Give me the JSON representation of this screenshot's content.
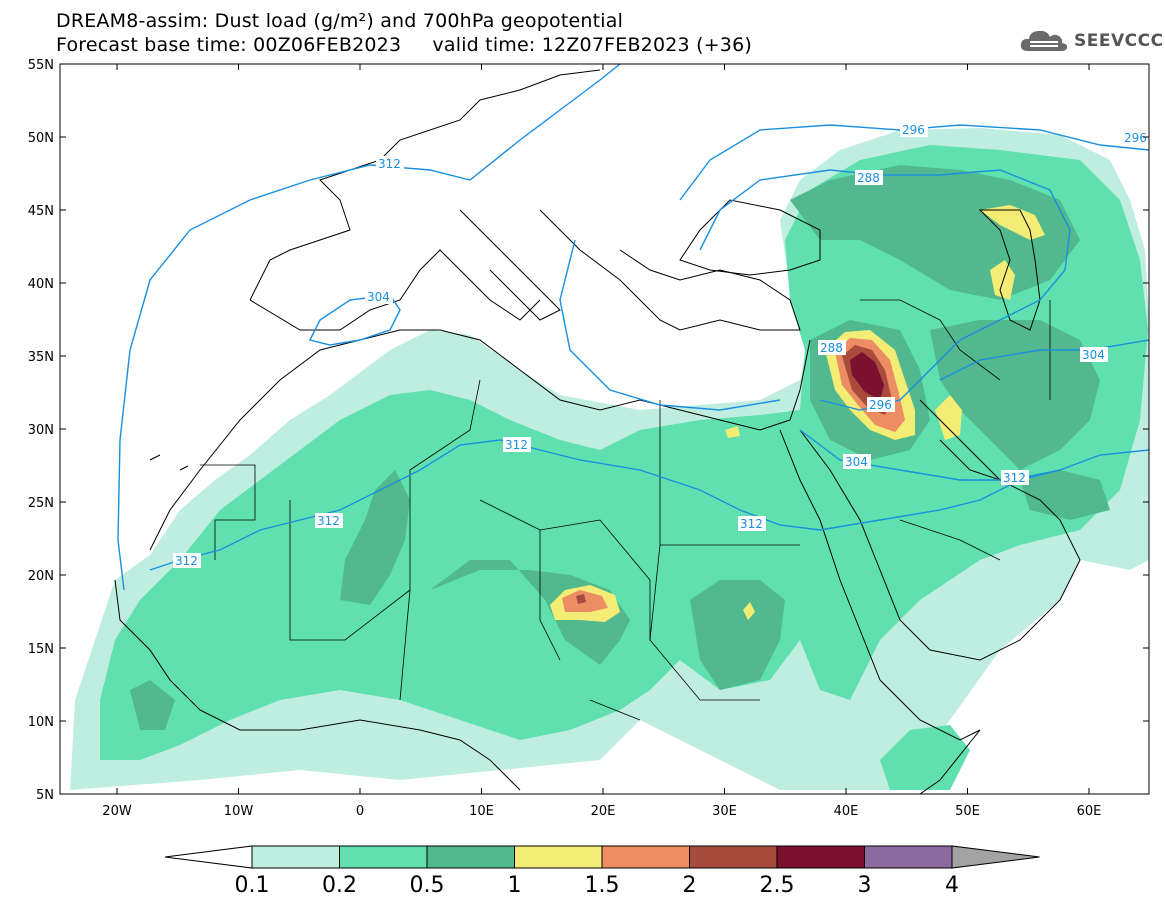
{
  "header": {
    "title_line1": "DREAM8-assim: Dust load (g/m²) and 700hPa geopotential",
    "title_line2": "Forecast base time: 00Z06FEB2023     valid time: 12Z07FEB2023 (+36)",
    "logo_text": "SEEVCCC"
  },
  "axes": {
    "lat_labels": [
      "55N",
      "50N",
      "45N",
      "40N",
      "35N",
      "30N",
      "25N",
      "20N",
      "15N",
      "10N",
      "5N"
    ],
    "lon_labels": [
      "20W",
      "10W",
      "0",
      "10E",
      "20E",
      "30E",
      "40E",
      "50E",
      "60E"
    ]
  },
  "contour_labels": [
    "312",
    "296",
    "296",
    "288",
    "304",
    "288",
    "296",
    "304",
    "312",
    "312",
    "312",
    "312",
    "304",
    "312"
  ],
  "colorbar": {
    "labels": [
      "0.1",
      "0.2",
      "0.5",
      "1",
      "1.5",
      "2",
      "2.5",
      "3",
      "4"
    ],
    "colors": [
      "#bfeee0",
      "#5fe0ae",
      "#52b88e",
      "#f3ec75",
      "#ec8d64",
      "#a84b3c",
      "#7c1030",
      "#8d6aa0",
      "#a3a3a3"
    ]
  },
  "colors": {
    "contour": "#1a8fe0",
    "border": "#000000",
    "level_0_1": "#bfeee0",
    "level_0_2": "#5fe0ae",
    "level_0_5": "#52b88e",
    "level_1": "#f3ec75",
    "level_1_5": "#ec8d64",
    "level_2": "#a84b3c",
    "level_2_5": "#7c1030"
  }
}
